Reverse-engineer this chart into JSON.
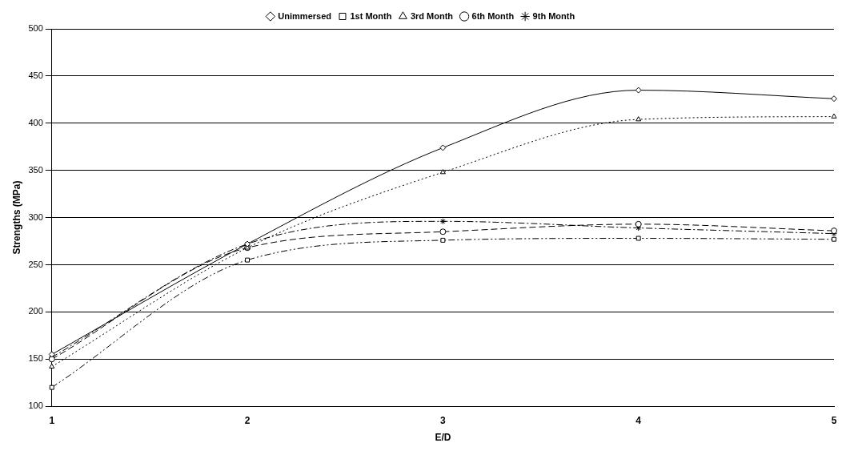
{
  "chart_data": {
    "type": "line",
    "xlabel": "E/D",
    "ylabel": "Strengths (MPa)",
    "categories": [
      "1",
      "2",
      "3",
      "4",
      "5"
    ],
    "series": [
      {
        "name": "Unimmersed",
        "color": "#000000",
        "marker": "diamond",
        "line_style": "solid",
        "values": [
          155,
          272,
          374,
          435,
          426
        ]
      },
      {
        "name": "1st Month",
        "color": "#000000",
        "marker": "square",
        "line_style": "dashdotdot",
        "values": [
          120,
          255,
          276,
          278,
          277
        ]
      },
      {
        "name": "3rd Month",
        "color": "#000000",
        "marker": "triangle",
        "line_style": "dotted",
        "values": [
          142,
          268,
          348,
          404,
          407
        ]
      },
      {
        "name": "6th Month",
        "color": "#000000",
        "marker": "circle",
        "line_style": "dashed",
        "values": [
          150,
          268,
          285,
          293,
          286
        ]
      },
      {
        "name": "9th Month",
        "color": "#000000",
        "marker": "cross",
        "line_style": "dashdot",
        "values": [
          152,
          272,
          296,
          289,
          283
        ]
      }
    ],
    "ylim": [
      100,
      500
    ],
    "yticks": [
      100,
      150,
      200,
      250,
      300,
      350,
      400,
      450,
      500
    ],
    "grid": "y",
    "legend": "top"
  }
}
